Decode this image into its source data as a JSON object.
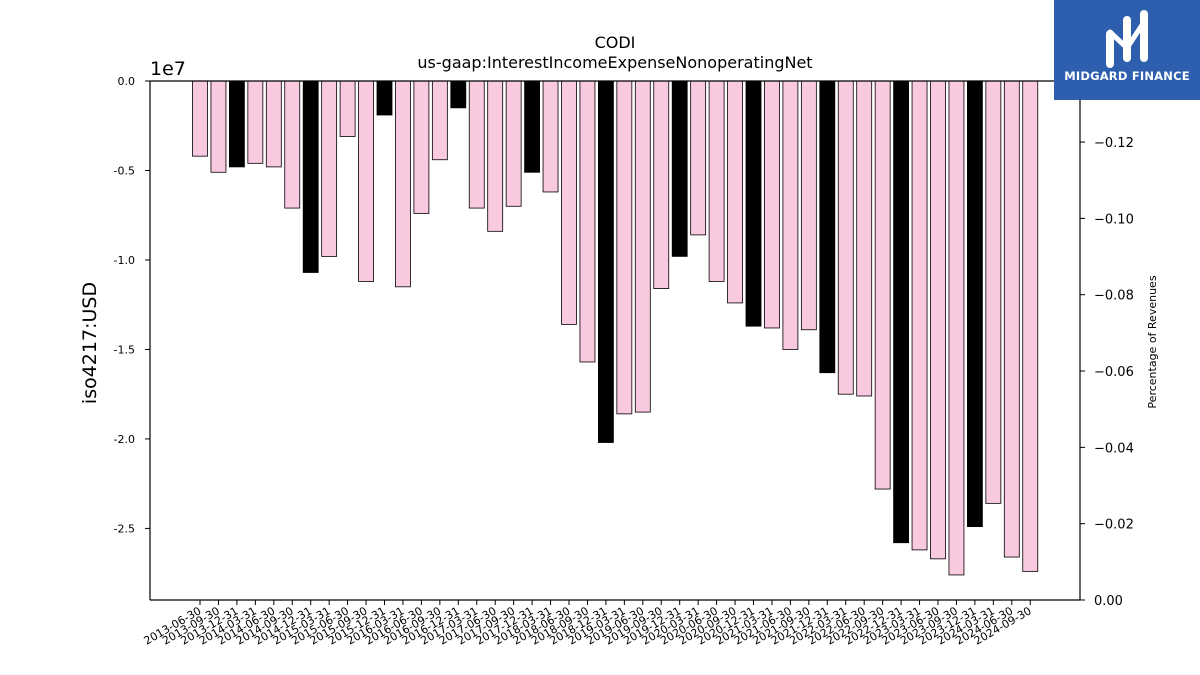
{
  "chart_data": {
    "type": "bar",
    "title": "CODI",
    "subtitle": "us-gaap:InterestIncomeExpenseNonoperatingNet",
    "ylabel": "iso4217:USD",
    "y2label": "Percentage of Revenues",
    "y_multiplier_label": "1e7",
    "ylim": [
      -29000000,
      0
    ],
    "y_ticks": [
      0,
      -5000000,
      -10000000,
      -15000000,
      -20000000,
      -25000000
    ],
    "y_tick_labels": [
      "0.0",
      "-0.5",
      "-1.0",
      "-1.5",
      "-2.0",
      "-2.5"
    ],
    "y2lim": [
      0,
      -0.136
    ],
    "y2_ticks": [
      0,
      -0.02,
      -0.04,
      -0.06,
      -0.08,
      -0.1,
      -0.12
    ],
    "y2_tick_labels": [
      "0.00",
      "−0.02",
      "−0.04",
      "−0.06",
      "−0.08",
      "−0.10",
      "−0.12"
    ],
    "bar_colors": {
      "quarter": "#f9c9df",
      "year_end": "#000000",
      "edge": "#000000"
    },
    "categories": [
      "2013-06-30",
      "2013-09-30",
      "2013-12-31",
      "2014-03-31",
      "2014-06-30",
      "2014-09-30",
      "2014-12-31",
      "2015-03-31",
      "2015-06-30",
      "2015-09-30",
      "2015-12-31",
      "2016-03-31",
      "2016-06-30",
      "2016-09-30",
      "2016-12-31",
      "2017-03-31",
      "2017-06-30",
      "2017-09-30",
      "2017-12-31",
      "2018-03-31",
      "2018-06-30",
      "2018-09-30",
      "2018-12-31",
      "2019-03-31",
      "2019-06-30",
      "2019-09-30",
      "2019-12-31",
      "2020-03-31",
      "2020-06-30",
      "2020-09-30",
      "2020-12-31",
      "2021-03-31",
      "2021-06-30",
      "2021-09-30",
      "2021-12-31",
      "2022-03-31",
      "2022-06-30",
      "2022-09-30",
      "2022-12-31",
      "2023-03-31",
      "2023-06-30",
      "2023-09-30",
      "2023-12-31",
      "2024-03-31",
      "2024-06-30",
      "2024-09-30"
    ],
    "values": [
      -4200000,
      -5100000,
      -4800000,
      -4600000,
      -4800000,
      -7100000,
      -10700000,
      -9800000,
      -3100000,
      -11200000,
      -1900000,
      -11500000,
      -7400000,
      -4400000,
      -1500000,
      -7100000,
      -8400000,
      -7000000,
      -5100000,
      -6200000,
      -13600000,
      -15700000,
      -20200000,
      -18600000,
      -18500000,
      -11600000,
      -9800000,
      -8600000,
      -11200000,
      -12400000,
      -13700000,
      -13800000,
      -15000000,
      -13900000,
      -16300000,
      -17500000,
      -17600000,
      -22800000,
      -25800000,
      -26200000,
      -26700000,
      -27600000,
      -24900000,
      -23600000,
      -26600000,
      -27400000
    ],
    "year_end": [
      false,
      false,
      true,
      false,
      false,
      false,
      true,
      false,
      false,
      false,
      true,
      false,
      false,
      false,
      true,
      false,
      false,
      false,
      true,
      false,
      false,
      false,
      true,
      false,
      false,
      false,
      true,
      false,
      false,
      false,
      true,
      false,
      false,
      false,
      true,
      false,
      false,
      false,
      true,
      false,
      false,
      false,
      true,
      false,
      false,
      false
    ]
  },
  "branding": {
    "name": "MIDGARD FINANCE",
    "logo_icon": "midgard-m-logo-icon"
  }
}
